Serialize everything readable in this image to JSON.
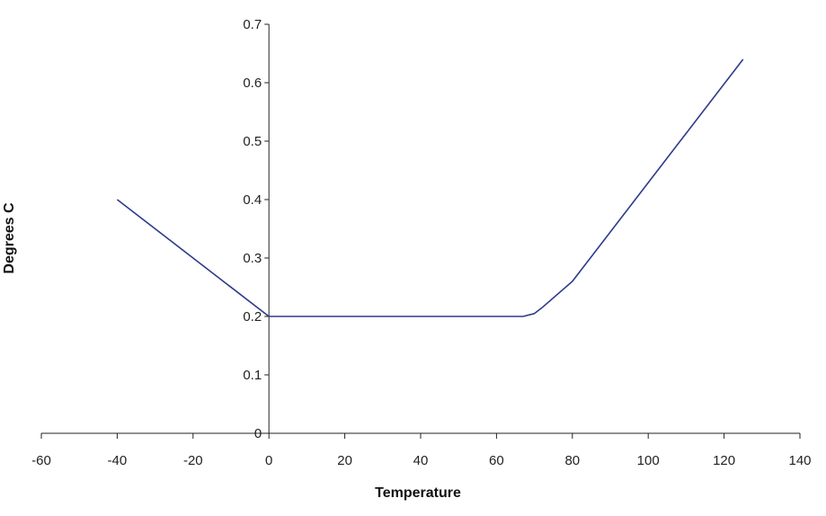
{
  "chart_data": {
    "type": "line",
    "title": "",
    "xlabel": "Temperature",
    "ylabel": "Degrees C",
    "xlim": [
      -60,
      140
    ],
    "ylim": [
      0,
      0.7
    ],
    "x_ticks": [
      "-60",
      "-40",
      "-20",
      "0",
      "20",
      "40",
      "60",
      "80",
      "100",
      "120",
      "140"
    ],
    "y_ticks": [
      "0",
      "0.1",
      "0.2",
      "0.3",
      "0.4",
      "0.5",
      "0.6",
      "0.7"
    ],
    "grid": false,
    "legend": "none",
    "series": [
      {
        "color": "#2e3a8c",
        "x": [
          -40,
          0,
          67,
          70,
          72,
          80,
          125
        ],
        "y": [
          0.4,
          0.2,
          0.2,
          0.205,
          0.215,
          0.26,
          0.64
        ]
      }
    ]
  }
}
